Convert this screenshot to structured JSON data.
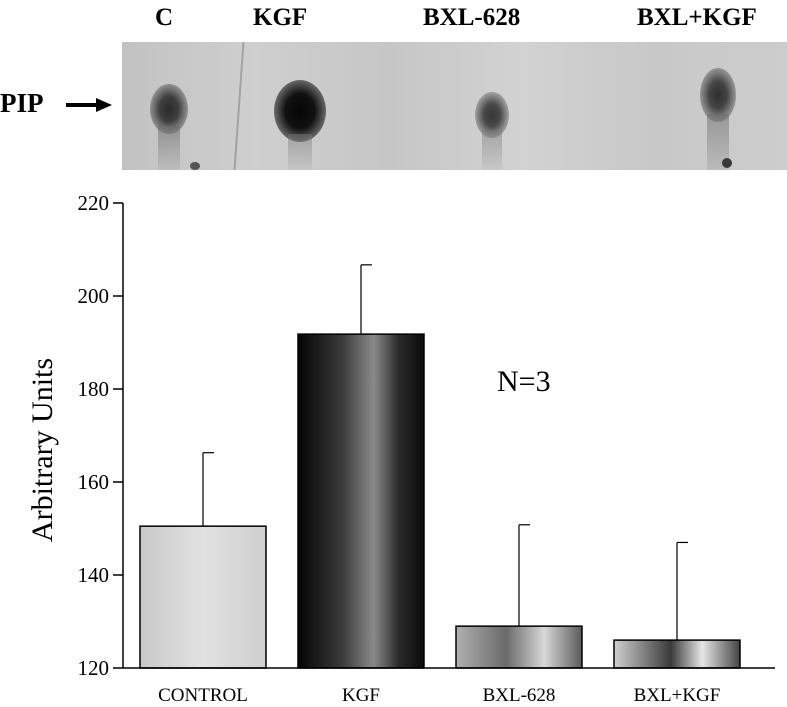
{
  "blot": {
    "lane_labels": [
      "C",
      "KGF",
      "BXL-628",
      "BXL+KGF"
    ],
    "band_label": "PIP"
  },
  "chart_data": {
    "type": "bar",
    "categories": [
      "CONTROL",
      "KGF",
      "BXL-628",
      "BXL+KGF"
    ],
    "values": [
      150.5,
      191.8,
      129,
      126
    ],
    "error_plus": [
      15.8,
      14.9,
      21.8,
      21
    ],
    "ylabel": "Arbitrary Units",
    "xlabel": "",
    "title": "",
    "ylim": [
      120,
      220
    ],
    "yticks": [
      120,
      140,
      160,
      180,
      200,
      220
    ],
    "annotation": "N=3",
    "grid": false,
    "colors": [
      "#d6d6d6",
      "#1c1c1c",
      "#8a8a8a",
      "#6e6e6e"
    ]
  }
}
